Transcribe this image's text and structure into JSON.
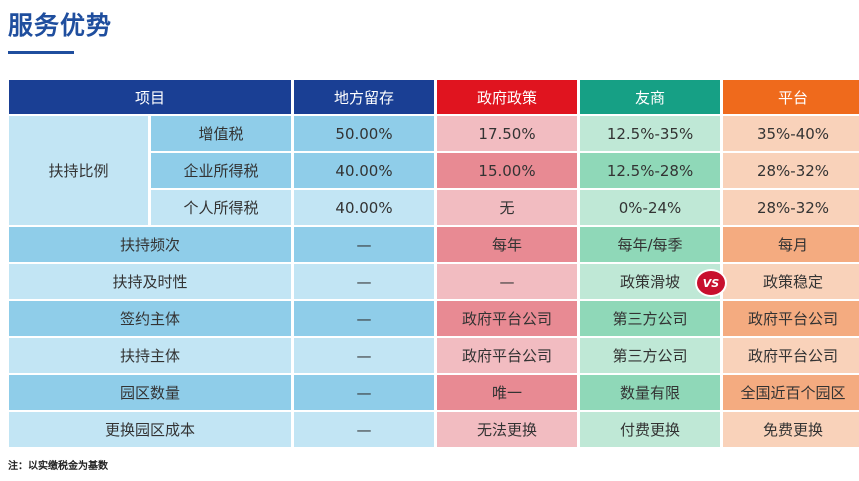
{
  "title": "服务优势",
  "headers": {
    "item": "项目",
    "local": "地方留存",
    "gov": "政府政策",
    "friend": "友商",
    "platform": "平台"
  },
  "support_ratio": {
    "label": "扶持比例",
    "rows": [
      {
        "name": "增值税",
        "local": "50.00%",
        "gov": "17.50%",
        "friend": "12.5%-35%",
        "platform": "35%-40%"
      },
      {
        "name": "企业所得税",
        "local": "40.00%",
        "gov": "15.00%",
        "friend": "12.5%-28%",
        "platform": "28%-32%"
      },
      {
        "name": "个人所得税",
        "local": "40.00%",
        "gov": "无",
        "friend": "0%-24%",
        "platform": "28%-32%"
      }
    ]
  },
  "rows": [
    {
      "name": "扶持频次",
      "local": "—",
      "gov": "每年",
      "friend": "每年/每季",
      "platform": "每月"
    },
    {
      "name": "扶持及时性",
      "local": "—",
      "gov": "—",
      "friend": "政策滑坡",
      "platform": "政策稳定"
    },
    {
      "name": "签约主体",
      "local": "—",
      "gov": "政府平台公司",
      "friend": "第三方公司",
      "platform": "政府平台公司"
    },
    {
      "name": "扶持主体",
      "local": "—",
      "gov": "政府平台公司",
      "friend": "第三方公司",
      "platform": "政府平台公司"
    },
    {
      "name": "园区数量",
      "local": "—",
      "gov": "唯一",
      "friend": "数量有限",
      "platform": "全国近百个园区"
    },
    {
      "name": "更换园区成本",
      "local": "—",
      "gov": "无法更换",
      "friend": "付费更换",
      "platform": "免费更换"
    }
  ],
  "vs_badge": "VS",
  "note": "注：以实缴税金为基数"
}
